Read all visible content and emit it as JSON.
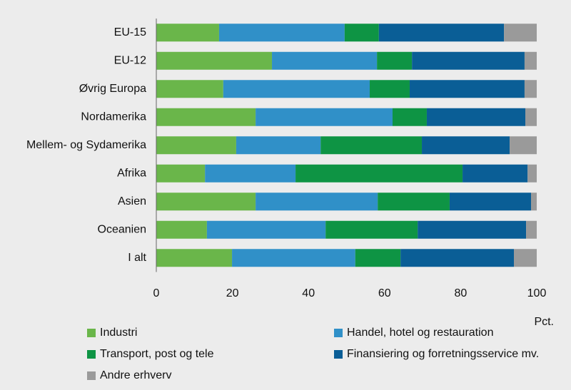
{
  "chart_data": {
    "type": "stacked-bar-horizontal",
    "categories": [
      "EU-15",
      "EU-12",
      "Øvrig Europa",
      "Nordamerika",
      "Mellem- og Sydamerika",
      "Afrika",
      "Asien",
      "Oceanien",
      "I alt"
    ],
    "series": [
      {
        "name": "Industri",
        "color": "#6ab64a",
        "values": [
          16.5,
          30.4,
          17.6,
          26.1,
          21.0,
          12.8,
          26.1,
          13.3,
          19.9
        ]
      },
      {
        "name": "Handel, hotel og restauration",
        "color": "#3090c8",
        "values": [
          33.0,
          27.6,
          38.5,
          36.0,
          22.2,
          23.8,
          32.1,
          31.2,
          32.4
        ]
      },
      {
        "name": "Transport, post og tele",
        "color": "#0e9444",
        "values": [
          9.0,
          9.2,
          10.5,
          9.0,
          26.6,
          43.9,
          18.9,
          24.2,
          11.9
        ]
      },
      {
        "name": "Finansiering og forretningsservice mv.",
        "color": "#0a5e96",
        "values": [
          32.9,
          29.6,
          30.2,
          25.9,
          23.1,
          17.1,
          21.4,
          28.5,
          29.8
        ]
      },
      {
        "name": "Andre erhverv",
        "color": "#9a9a9a",
        "values": [
          8.6,
          3.2,
          3.2,
          3.0,
          7.1,
          2.4,
          1.5,
          2.8,
          6.0
        ]
      }
    ],
    "xlabel": "Pct.",
    "xlim": [
      0,
      100
    ],
    "xticks": [
      0,
      20,
      40,
      60,
      80,
      100
    ]
  }
}
